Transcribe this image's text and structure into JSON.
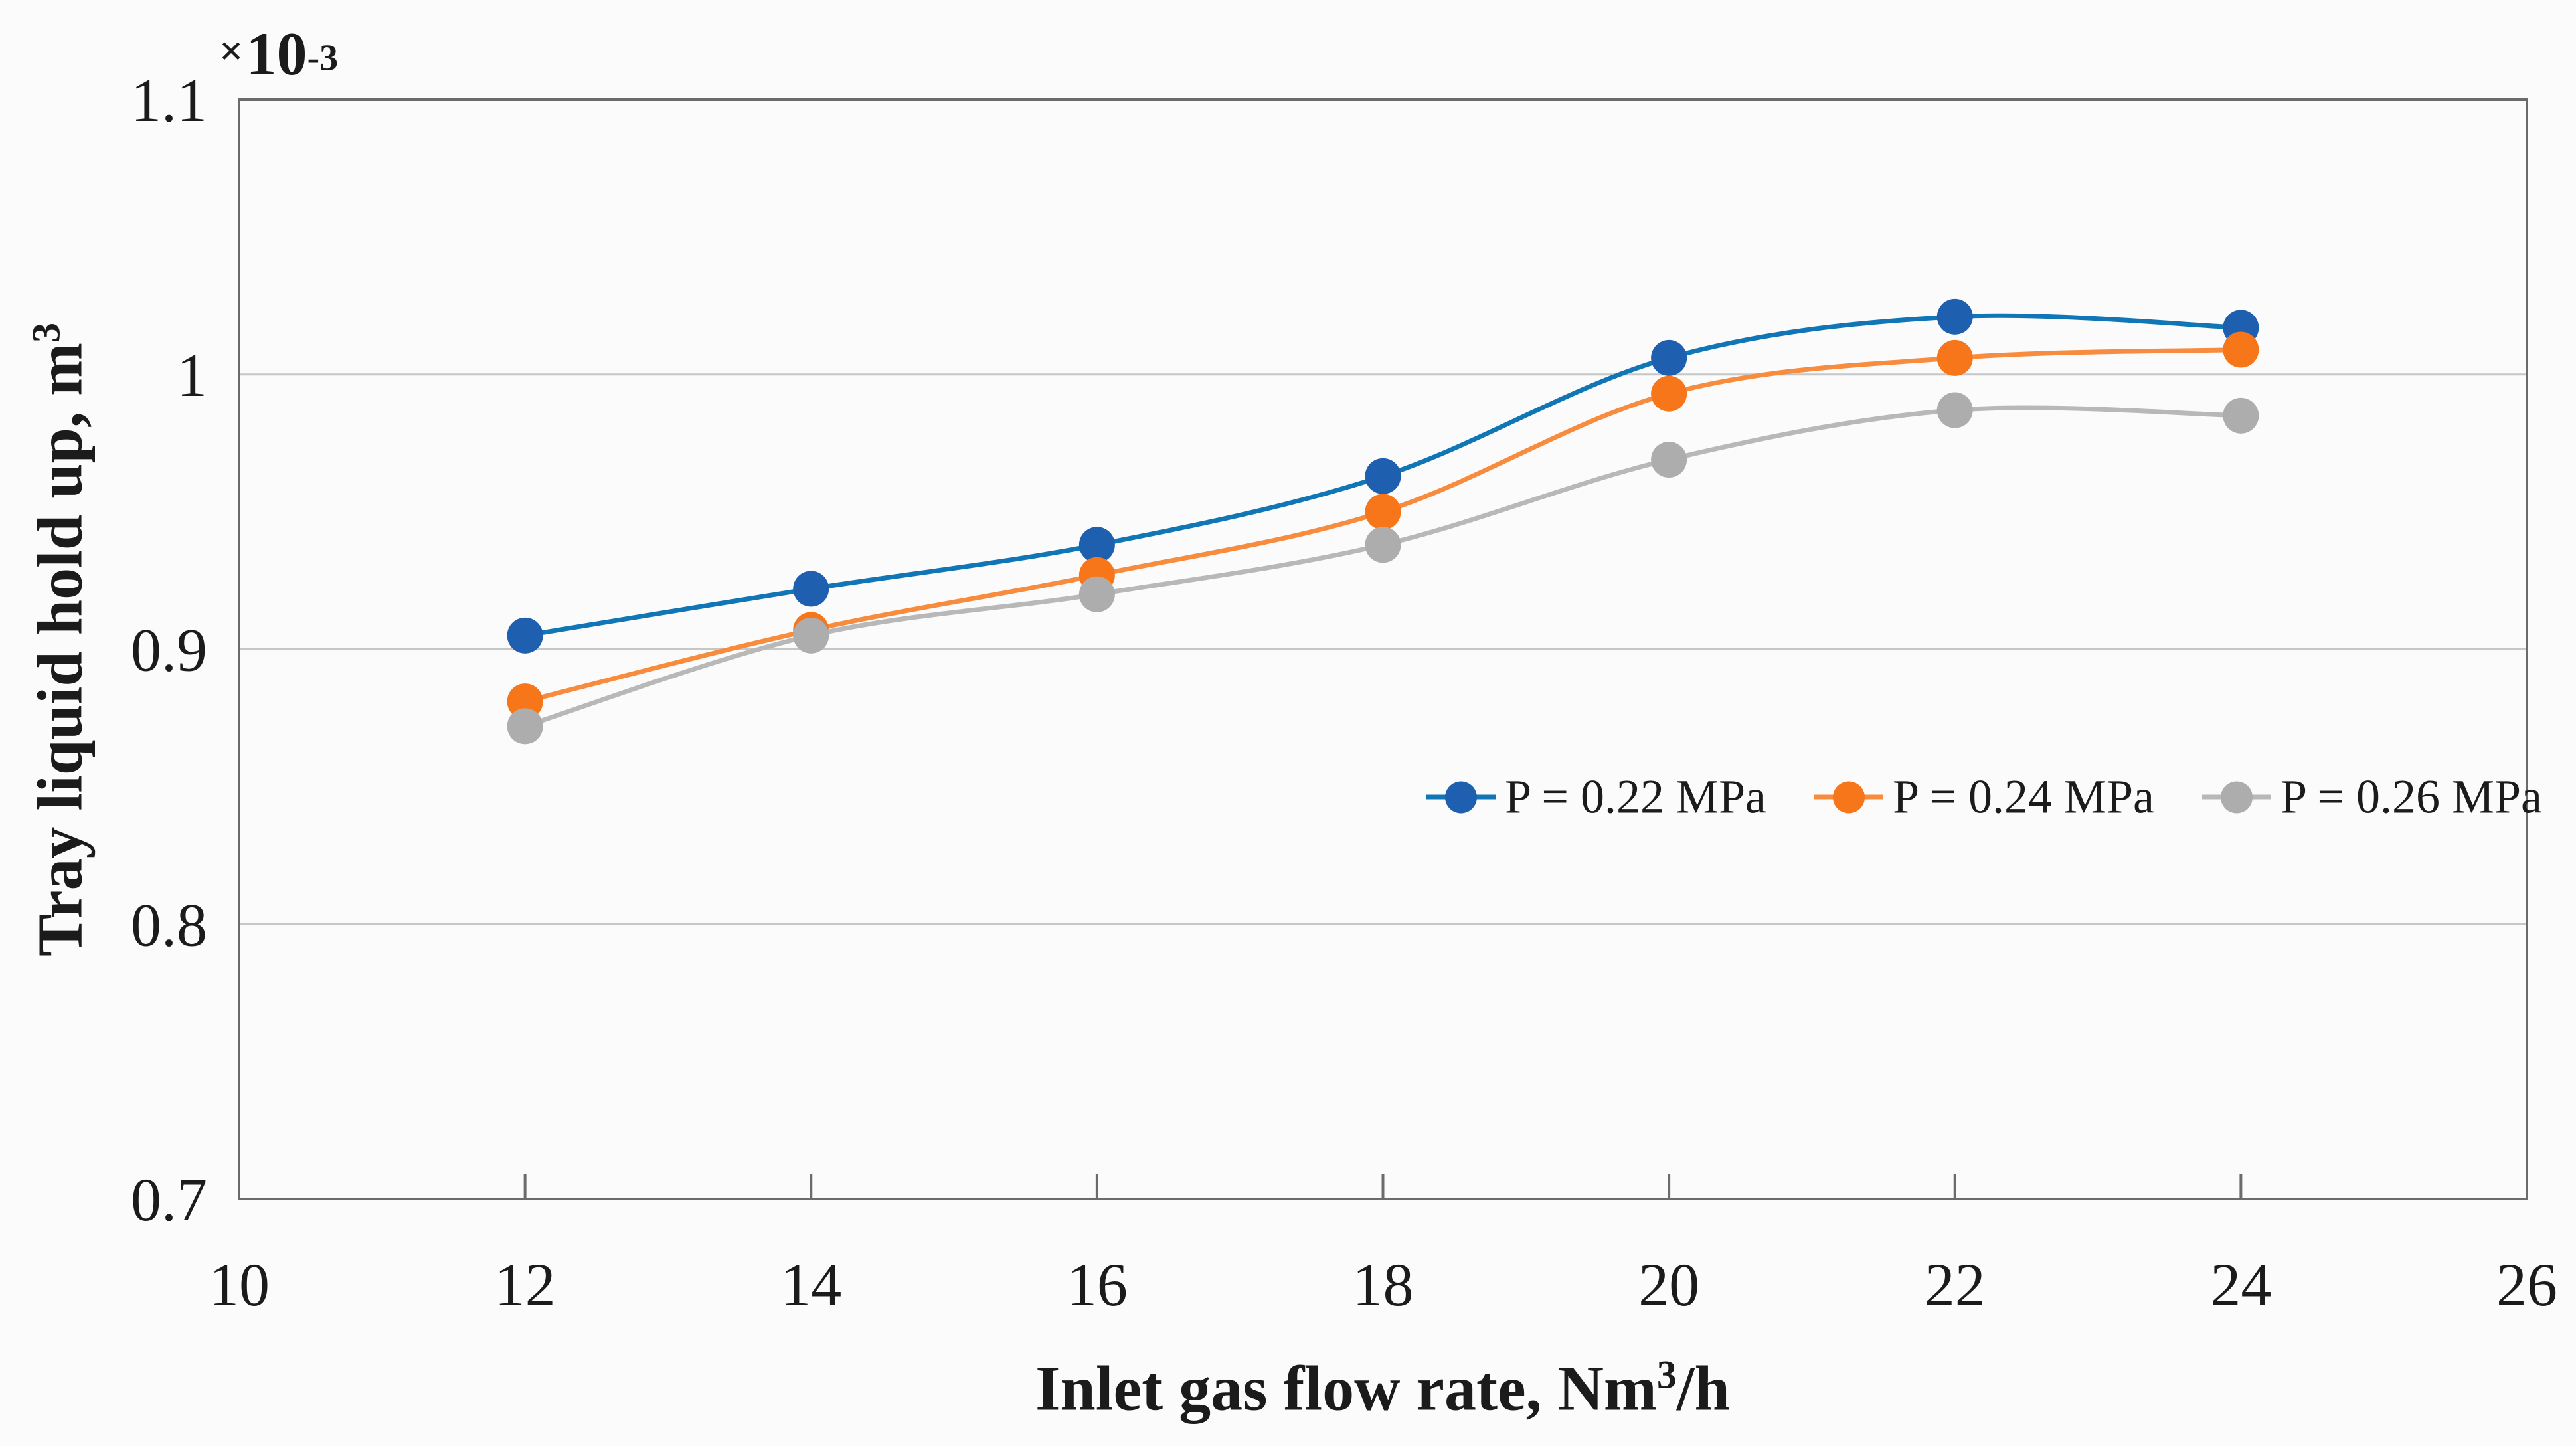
{
  "figure": {
    "background": "#FBFBFB",
    "frame_color": "#6B6B6B",
    "gridline_color": "#C6C6C6",
    "text_color": "#1b1b1b",
    "offset": {
      "sign": "×",
      "base": "10",
      "exponent": "-3"
    },
    "y_axis": {
      "title": "Tray liquid hold up, m",
      "title_sup": "3",
      "tick_labels": [
        "1.1",
        "1",
        "0.9",
        "0.8",
        "0.7"
      ],
      "tick_values": [
        1.1,
        1.0,
        0.9,
        0.8,
        0.7
      ]
    },
    "x_axis": {
      "title": "Inlet gas flow rate, Nm",
      "title_sup": "3",
      "title_suffix": "/h",
      "tick_labels": [
        "10",
        "12",
        "14",
        "16",
        "18",
        "20",
        "22",
        "24",
        "26"
      ],
      "tick_values": [
        10,
        12,
        14,
        16,
        18,
        20,
        22,
        24,
        26
      ]
    }
  },
  "chart_data": {
    "type": "line",
    "title": "",
    "xlabel": "Inlet gas flow rate, Nm³/h",
    "ylabel": "Tray liquid hold up, m³",
    "x": [
      12,
      14,
      16,
      18,
      20,
      22,
      24
    ],
    "series": [
      {
        "name": "P = 0.22 MPa",
        "marker_color": "#1F5FAF",
        "line_color": "#1176B5",
        "values": [
          0.905,
          0.922,
          0.938,
          0.963,
          1.006,
          1.021,
          1.017
        ]
      },
      {
        "name": "P = 0.24 MPa",
        "marker_color": "#F7761A",
        "line_color": "#F78C3E",
        "values": [
          0.881,
          0.907,
          0.927,
          0.95,
          0.993,
          1.006,
          1.009
        ]
      },
      {
        "name": "P = 0.26 MPa",
        "marker_color": "#ADADAD",
        "line_color": "#B8B8B8",
        "values": [
          0.872,
          0.905,
          0.92,
          0.938,
          0.969,
          0.987,
          0.985
        ]
      }
    ],
    "xlim": [
      10,
      26
    ],
    "ylim": [
      0.7,
      1.1
    ],
    "y_scale_note": "values are in units of 1e-3 m3 (axis offset × 10^-3)",
    "grid": "horizontal",
    "legend_position": "inside-right-middle"
  }
}
